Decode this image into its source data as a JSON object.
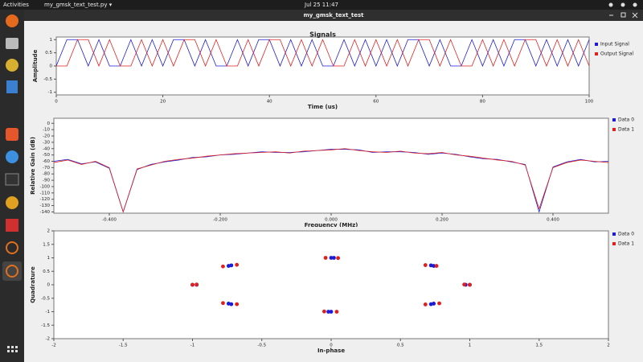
{
  "topbar": {
    "activities": "Activities",
    "app": "my_gmsk_text_test.py ▾",
    "clock": "Jul 25  11:47"
  },
  "window": {
    "title": "my_gmsk_text_test"
  },
  "chart_data": [
    {
      "type": "line",
      "title": "Signals",
      "xlabel": "Time (us)",
      "ylabel": "Amplitude",
      "x": [
        0,
        2,
        4,
        6,
        8,
        10,
        12,
        14,
        16,
        18,
        20,
        22,
        24,
        26,
        28,
        30,
        32,
        34,
        36,
        38,
        40,
        42,
        44,
        46,
        48,
        50,
        52,
        54,
        56,
        58,
        60,
        62,
        64,
        66,
        68,
        70,
        72,
        74,
        76,
        78,
        80,
        82,
        84,
        86,
        88,
        90,
        92,
        94,
        96,
        98,
        100
      ],
      "series": [
        {
          "name": "Input Signal",
          "color": "#1c1cd6",
          "values": [
            0,
            1,
            1,
            0,
            1,
            0,
            0,
            1,
            0,
            1,
            0,
            1,
            1,
            0,
            1,
            0,
            0,
            1,
            0,
            1,
            1,
            0,
            1,
            0,
            1,
            0,
            0,
            1,
            0,
            1,
            0,
            1,
            0,
            1,
            1,
            0,
            1,
            0,
            0,
            1,
            0,
            1,
            0,
            1,
            1,
            0,
            1,
            0,
            1,
            0,
            1
          ]
        },
        {
          "name": "Output Signal",
          "color": "#e0201f",
          "values": [
            0,
            0,
            1,
            1,
            0,
            1,
            0,
            0,
            1,
            0,
            1,
            0,
            1,
            1,
            0,
            1,
            0,
            0,
            1,
            0,
            1,
            1,
            0,
            1,
            0,
            1,
            0,
            0,
            1,
            0,
            1,
            0,
            1,
            0,
            1,
            1,
            0,
            1,
            0,
            0,
            1,
            0,
            1,
            0,
            1,
            1,
            0,
            1,
            0,
            1,
            0
          ]
        }
      ],
      "xlim": [
        0,
        100
      ],
      "xticks": [
        0,
        20,
        40,
        60,
        80,
        100
      ],
      "ylim": [
        -1.1,
        1.1
      ],
      "yticks": [
        -1,
        -0.5,
        0,
        0.5,
        1
      ]
    },
    {
      "type": "line",
      "xlabel": "Frequency (MHz)",
      "ylabel": "Relative Gain (dB)",
      "x": [
        -0.5,
        -0.475,
        -0.45,
        -0.425,
        -0.4,
        -0.375,
        -0.35,
        -0.325,
        -0.3,
        -0.275,
        -0.25,
        -0.225,
        -0.2,
        -0.175,
        -0.15,
        -0.125,
        -0.1,
        -0.075,
        -0.05,
        -0.025,
        0,
        0.025,
        0.05,
        0.075,
        0.1,
        0.125,
        0.15,
        0.175,
        0.2,
        0.225,
        0.25,
        0.275,
        0.3,
        0.325,
        0.35,
        0.375,
        0.4,
        0.425,
        0.45,
        0.475,
        0.5
      ],
      "series": [
        {
          "name": "Data 0",
          "color": "#1c1cd6",
          "values": [
            -60,
            -57,
            -64,
            -61,
            -71,
            -140,
            -73,
            -65,
            -61,
            -58,
            -54,
            -53,
            -50,
            -49,
            -47,
            -45,
            -46,
            -46,
            -45,
            -43,
            -41,
            -41,
            -42,
            -46,
            -45,
            -45,
            -46,
            -49,
            -47,
            -49,
            -53,
            -56,
            -57,
            -61,
            -65,
            -140,
            -69,
            -61,
            -57,
            -61,
            -60
          ]
        },
        {
          "name": "Data 1",
          "color": "#e0201f",
          "values": [
            -62,
            -58,
            -65,
            -60,
            -70,
            -140,
            -72,
            -66,
            -60,
            -57,
            -55,
            -52,
            -50,
            -48,
            -47,
            -46,
            -45,
            -47,
            -44,
            -43,
            -42,
            -40,
            -43,
            -45,
            -46,
            -44,
            -47,
            -48,
            -46,
            -50,
            -52,
            -55,
            -58,
            -60,
            -66,
            -135,
            -70,
            -62,
            -58,
            -60,
            -62
          ]
        }
      ],
      "xlim": [
        -0.5,
        0.5
      ],
      "xticks": [
        {
          "value": -0.4,
          "label": "-0.400"
        },
        {
          "value": -0.2,
          "label": "-0.200"
        },
        {
          "value": 0,
          "label": "0.000"
        },
        {
          "value": 0.2,
          "label": "0.200"
        },
        {
          "value": 0.4,
          "label": "0.400"
        }
      ],
      "ylim": [
        -142,
        8
      ],
      "yticks": [
        -140,
        -130,
        -120,
        -110,
        -100,
        -90,
        -80,
        -70,
        -60,
        -50,
        -40,
        -30,
        -20,
        -10,
        0
      ]
    },
    {
      "type": "scatter",
      "xlabel": "In-phase",
      "ylabel": "Quadrature",
      "series": [
        {
          "name": "Data 0",
          "color": "#1c1cd6",
          "x": [
            1,
            0.97,
            0.72,
            0.74,
            0,
            0.02,
            -0.72,
            -0.74,
            -1,
            -0.97,
            -0.72,
            -0.74,
            0,
            -0.02,
            0.72,
            0.74
          ],
          "values": [
            0,
            0,
            0.72,
            0.7,
            1,
            1,
            0.72,
            0.7,
            0,
            0,
            -0.72,
            -0.7,
            -1,
            -1,
            -0.72,
            -0.7
          ]
        },
        {
          "name": "Data 1",
          "color": "#e0201f",
          "x": [
            1,
            0.96,
            0.68,
            0.76,
            -0.04,
            0.05,
            -0.68,
            -0.78,
            -1,
            -0.97,
            -0.68,
            -0.78,
            0.04,
            -0.05,
            0.68,
            0.78
          ],
          "values": [
            0,
            0.01,
            0.73,
            0.7,
            1,
            0.99,
            0.74,
            0.68,
            0,
            0.01,
            -0.72,
            -0.68,
            -1,
            -0.99,
            -0.73,
            -0.69
          ]
        }
      ],
      "xlim": [
        -2,
        2
      ],
      "xticks": [
        -2,
        -1.5,
        -1,
        -0.5,
        0,
        0.5,
        1,
        1.5,
        2
      ],
      "ylim": [
        -2,
        2
      ],
      "yticks": [
        -2,
        -1.5,
        -1,
        -0.5,
        0,
        0.5,
        1,
        1.5,
        2
      ]
    }
  ]
}
